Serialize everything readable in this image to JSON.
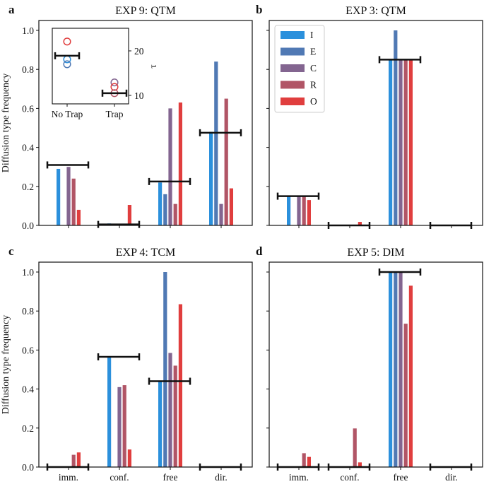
{
  "figure": {
    "ylabel": "Diffusion type frequency",
    "categories": [
      "imm.",
      "conf.",
      "free",
      "dir."
    ],
    "legend": [
      {
        "label": "I",
        "color": "#2b90dc"
      },
      {
        "label": "E",
        "color": "#5079b4"
      },
      {
        "label": "C",
        "color": "#836590"
      },
      {
        "label": "R",
        "color": "#b15566"
      },
      {
        "label": "O",
        "color": "#e03e3e"
      }
    ]
  },
  "chart_data": [
    {
      "type": "bar",
      "panel_label": "a",
      "title": "EXP 9: QTM",
      "xlabel": "",
      "ylabel": "Diffusion type frequency",
      "ylim": [
        0,
        1.05
      ],
      "yticks": [
        "0.0",
        "0.2",
        "0.4",
        "0.6",
        "0.8",
        "1.0"
      ],
      "categories": [
        "imm.",
        "conf.",
        "free",
        "dir."
      ],
      "show_x_labels": false,
      "series": [
        {
          "name": "I",
          "values": [
            0.29,
            0.01,
            0.22,
            0.48
          ]
        },
        {
          "name": "E",
          "values": [
            0.0,
            0.0,
            0.16,
            0.84
          ]
        },
        {
          "name": "C",
          "values": [
            0.3,
            0.0,
            0.6,
            0.11
          ]
        },
        {
          "name": "R",
          "values": [
            0.24,
            0.003,
            0.11,
            0.65
          ]
        },
        {
          "name": "O",
          "values": [
            0.08,
            0.105,
            0.63,
            0.19
          ]
        }
      ],
      "reference": [
        0.31,
        0.005,
        0.225,
        0.475
      ],
      "inset": {
        "type": "scatter",
        "categories": [
          "No Trap",
          "Trap"
        ],
        "ylabel": "τ",
        "yticks": [
          "10",
          "20"
        ],
        "ylim": [
          8.5,
          24.5
        ],
        "points": [
          {
            "category": "No Trap",
            "series": "O",
            "value": 22.1
          },
          {
            "category": "No Trap",
            "series": "I",
            "value": 18.1
          },
          {
            "category": "No Trap",
            "series": "E",
            "value": 17.0
          },
          {
            "category": "Trap",
            "series": "C",
            "value": 12.9
          },
          {
            "category": "Trap",
            "series": "O",
            "value": 11.9
          },
          {
            "category": "Trap",
            "series": "R",
            "value": 10.5
          }
        ],
        "reference": [
          18.9,
          10.5
        ]
      }
    },
    {
      "type": "bar",
      "panel_label": "b",
      "title": "EXP 3: QTM",
      "ylim": [
        0,
        1.05
      ],
      "yticks": [
        "0.0",
        "0.2",
        "0.4",
        "0.6",
        "0.8",
        "1.0"
      ],
      "categories": [
        "imm.",
        "conf.",
        "free",
        "dir."
      ],
      "show_x_labels": false,
      "legend": "top-left",
      "series": [
        {
          "name": "I",
          "values": [
            0.15,
            0.0,
            0.85,
            0.0
          ]
        },
        {
          "name": "E",
          "values": [
            0.0,
            0.0,
            1.0,
            0.0
          ]
        },
        {
          "name": "C",
          "values": [
            0.15,
            0.0,
            0.85,
            0.0
          ]
        },
        {
          "name": "R",
          "values": [
            0.15,
            0.0,
            0.85,
            0.0
          ]
        },
        {
          "name": "O",
          "values": [
            0.13,
            0.018,
            0.85,
            0.0
          ]
        }
      ],
      "reference": [
        0.15,
        0.0,
        0.85,
        0.0
      ]
    },
    {
      "type": "bar",
      "panel_label": "c",
      "title": "EXP 4: TCM",
      "ylabel": "Diffusion type frequency",
      "ylim": [
        0,
        1.05
      ],
      "yticks": [
        "0.0",
        "0.2",
        "0.4",
        "0.6",
        "0.8",
        "1.0"
      ],
      "categories": [
        "imm.",
        "conf.",
        "free",
        "dir."
      ],
      "show_x_labels": true,
      "series": [
        {
          "name": "I",
          "values": [
            0.0,
            0.565,
            0.44,
            0.0
          ]
        },
        {
          "name": "E",
          "values": [
            0.0,
            0.0,
            1.0,
            0.0
          ]
        },
        {
          "name": "C",
          "values": [
            0.0,
            0.41,
            0.585,
            0.0
          ]
        },
        {
          "name": "R",
          "values": [
            0.063,
            0.42,
            0.52,
            0.0
          ]
        },
        {
          "name": "O",
          "values": [
            0.075,
            0.09,
            0.835,
            0.0
          ]
        }
      ],
      "reference": [
        0.0,
        0.565,
        0.44,
        0.0
      ]
    },
    {
      "type": "bar",
      "panel_label": "d",
      "title": "EXP 5: DIM",
      "ylim": [
        0,
        1.05
      ],
      "yticks": [
        "0.0",
        "0.2",
        "0.4",
        "0.6",
        "0.8",
        "1.0"
      ],
      "categories": [
        "imm.",
        "conf.",
        "free",
        "dir."
      ],
      "show_x_labels": true,
      "series": [
        {
          "name": "I",
          "values": [
            0.0,
            0.0,
            1.0,
            0.0
          ]
        },
        {
          "name": "E",
          "values": [
            0.0,
            0.0,
            1.0,
            0.0
          ]
        },
        {
          "name": "C",
          "values": [
            0.0,
            0.0,
            1.0,
            0.0
          ]
        },
        {
          "name": "R",
          "values": [
            0.071,
            0.198,
            0.735,
            0.0
          ]
        },
        {
          "name": "O",
          "values": [
            0.052,
            0.024,
            0.93,
            0.0
          ]
        }
      ],
      "reference": [
        0.0,
        0.0,
        1.0,
        0.0
      ]
    }
  ]
}
